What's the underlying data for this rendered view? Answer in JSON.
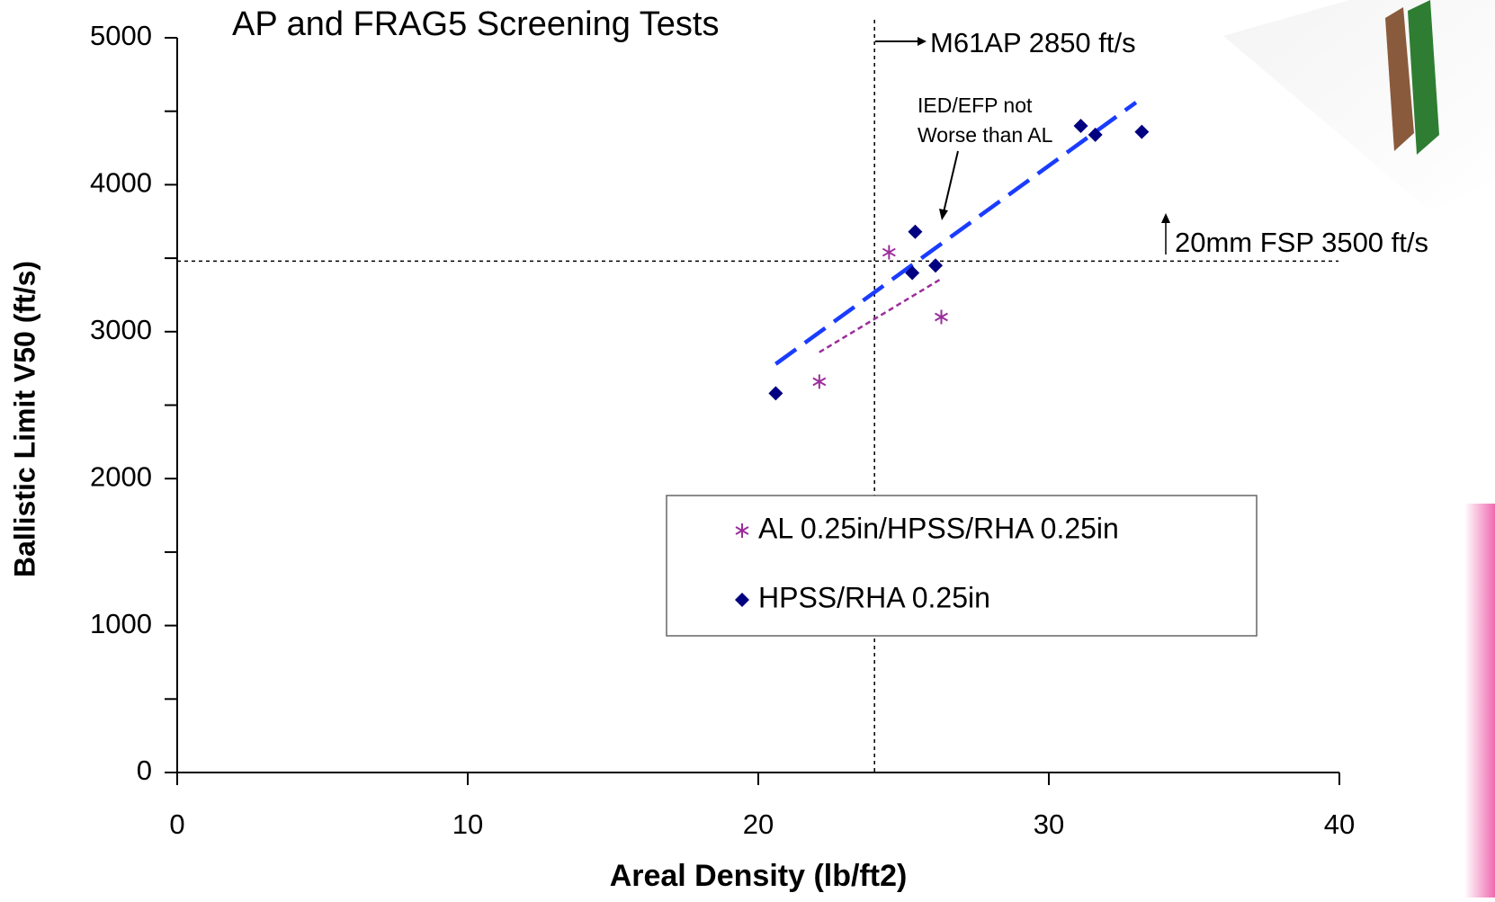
{
  "chart_data": {
    "type": "scatter",
    "title": "AP and FRAG5 Screening Tests",
    "x_label": "Areal Density (lb/ft2)",
    "y_label": "Ballistic Limit V50 (ft/s)",
    "xlim": [
      0,
      40
    ],
    "xticks": [
      0,
      10,
      20,
      30,
      40
    ],
    "ylim": [
      0,
      5000
    ],
    "yticks": [
      0,
      1000,
      2000,
      3000,
      4000,
      5000
    ],
    "yminor_ticks": [
      500,
      1500,
      2500,
      3500,
      4500
    ],
    "series": [
      {
        "name": "AL 0.25in/HPSS/RHA 0.25in",
        "color": "#9b2d9b",
        "marker": "asterisk",
        "x": [
          22.1,
          24.5,
          26.3
        ],
        "values": [
          2660,
          3540,
          3100
        ]
      },
      {
        "name": "HPSS/RHA 0.25in",
        "color": "#000080",
        "marker": "diamond",
        "x": [
          20.6,
          25.3,
          25.4,
          26.1,
          31.1,
          31.6,
          33.2
        ],
        "values": [
          2580,
          3400,
          3680,
          3450,
          4400,
          4340,
          4360
        ]
      }
    ],
    "trendlines": [
      {
        "color": "#9b2d9b",
        "line_style": "short-dash",
        "x": [
          22.1,
          26.3
        ],
        "values": [
          2860,
          3360
        ]
      },
      {
        "color": "#1a3cff",
        "line_style": "long-dash",
        "x": [
          20.6,
          33.0
        ],
        "values": [
          2780,
          4560
        ]
      }
    ],
    "reference_lines": {
      "x": 24,
      "y": 3480
    },
    "annotations": {
      "ap": "M61AP 2850 ft/s",
      "fsp": "20mm FSP 3500 ft/s",
      "ied": [
        "IED/EFP not",
        "Worse than AL"
      ]
    }
  }
}
